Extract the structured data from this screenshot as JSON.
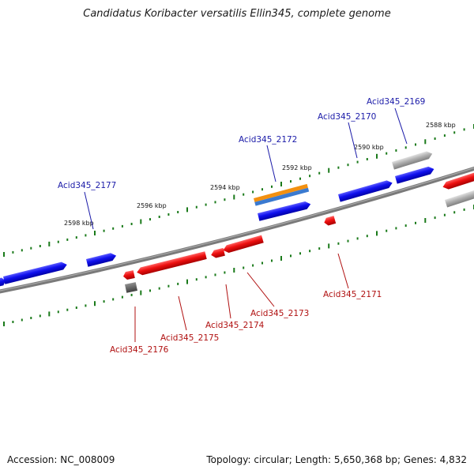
{
  "title": "Candidatus Koribacter versatilis Ellin345, complete genome",
  "footer": {
    "accession": "Accession: NC_008009",
    "summary": "Topology: circular; Length: 5,650,368 bp; Genes: 4,832"
  },
  "colors": {
    "forward": "#1010ee",
    "reverse": "#e81010",
    "other": "#9a9a9a",
    "backbone": "#7a7a7a",
    "tick": "#1a7a1a",
    "forward_label": "#1a1aa8",
    "reverse_label": "#b01010"
  },
  "ticks": [
    {
      "label": "2588 kbp"
    },
    {
      "label": "2590 kbp"
    },
    {
      "label": "2592 kbp"
    },
    {
      "label": "2594 kbp"
    },
    {
      "label": "2596 kbp"
    },
    {
      "label": "2598 kbp"
    }
  ],
  "genes": [
    {
      "label": "Acid345_2169",
      "strand": "forward"
    },
    {
      "label": "Acid345_2170",
      "strand": "forward"
    },
    {
      "label": "Acid345_2172",
      "strand": "forward"
    },
    {
      "label": "Acid345_2177",
      "strand": "forward"
    },
    {
      "label": "Acid345_2171",
      "strand": "reverse"
    },
    {
      "label": "Acid345_2173",
      "strand": "reverse"
    },
    {
      "label": "Acid345_2174",
      "strand": "reverse"
    },
    {
      "label": "Acid345_2175",
      "strand": "reverse"
    },
    {
      "label": "Acid345_2176",
      "strand": "reverse"
    }
  ]
}
